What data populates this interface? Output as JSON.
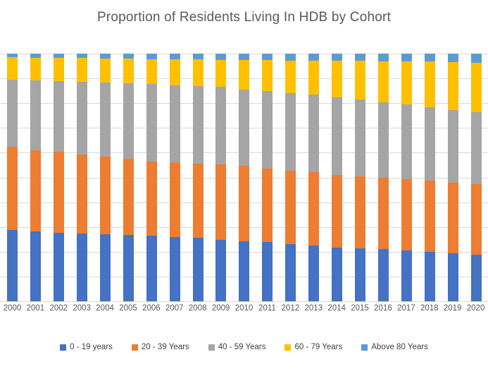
{
  "title": "Proportion of Residents Living In HDB by Cohort",
  "colors": {
    "series_0_19": "#4472C4",
    "series_20_39": "#ED7D31",
    "series_40_59": "#A5A5A5",
    "series_60_79": "#FFC000",
    "series_above_80": "#5B9BD5",
    "gridline": "#D9D9D9",
    "title_text": "#595959",
    "axis_text": "#595959",
    "background": "#FFFFFF"
  },
  "chart_data": {
    "type": "bar",
    "subtype": "stacked-100-percent",
    "title": "Proportion of Residents Living In HDB by Cohort",
    "xlabel": "",
    "ylabel": "",
    "ylim": [
      0,
      100
    ],
    "y_axis_visible": false,
    "grid": "horizontal gridlines every 10%",
    "legend_position": "bottom",
    "categories": [
      "2000",
      "2001",
      "2002",
      "2003",
      "2004",
      "2005",
      "2006",
      "2007",
      "2008",
      "2009",
      "2010",
      "2011",
      "2012",
      "2013",
      "2014",
      "2015",
      "2016",
      "2017",
      "2018",
      "2019",
      "2020"
    ],
    "series": [
      {
        "name": "0 - 19 years",
        "color": "#4472C4",
        "values": [
          28.8,
          28.3,
          27.6,
          27.4,
          27.2,
          26.9,
          26.5,
          25.9,
          25.6,
          24.8,
          24.3,
          23.8,
          23.2,
          22.4,
          21.7,
          21.4,
          21.0,
          20.6,
          19.9,
          19.5,
          18.9
        ]
      },
      {
        "name": "20 - 39 Years",
        "color": "#ED7D31",
        "values": [
          33.5,
          32.8,
          32.8,
          31.8,
          31.3,
          30.6,
          29.9,
          30.2,
          30.0,
          30.6,
          30.4,
          29.8,
          29.6,
          29.7,
          29.4,
          29.0,
          28.9,
          28.8,
          28.7,
          28.4,
          28.5
        ]
      },
      {
        "name": "40 - 59 Years",
        "color": "#A5A5A5",
        "values": [
          27.2,
          28.2,
          28.4,
          29.5,
          29.8,
          30.6,
          31.4,
          31.2,
          31.3,
          31.1,
          30.9,
          31.2,
          31.3,
          31.4,
          31.2,
          31.1,
          30.5,
          30.0,
          29.8,
          29.4,
          29.0
        ]
      },
      {
        "name": "60 - 79 Years",
        "color": "#FFC000",
        "values": [
          9.0,
          9.1,
          9.4,
          9.5,
          9.7,
          9.8,
          10.0,
          10.4,
          10.7,
          11.0,
          11.8,
          12.6,
          13.1,
          13.7,
          14.9,
          15.7,
          16.6,
          17.6,
          18.4,
          19.3,
          20.0
        ]
      },
      {
        "name": "Above 80 Years",
        "color": "#5B9BD5",
        "values": [
          1.5,
          1.6,
          1.8,
          1.8,
          2.0,
          2.1,
          2.2,
          2.3,
          2.4,
          2.5,
          2.6,
          2.6,
          2.8,
          2.8,
          2.8,
          2.8,
          3.0,
          3.0,
          3.2,
          3.4,
          3.6
        ]
      }
    ]
  }
}
